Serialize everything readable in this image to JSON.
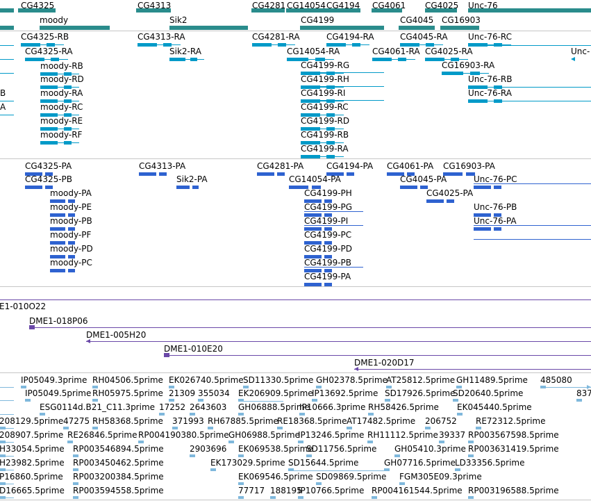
{
  "colors": {
    "gene_track": "#2a8c8c",
    "transcript_track": "#009ac8",
    "protein_track": "#2e62d0",
    "clone_track": "#6a48a8",
    "est_track": "#7fb8dc",
    "separator": "#c6c6c6",
    "text": "#000000"
  },
  "tracks": {
    "genes": {
      "features": [
        {
          "label": "CG4325"
        },
        {
          "label": "moody"
        },
        {
          "label": "CG4313"
        },
        {
          "label": "Sik2"
        },
        {
          "label": "CG4281"
        },
        {
          "label": "CG14054"
        },
        {
          "label": "CG4194"
        },
        {
          "label": "CG4199"
        },
        {
          "label": "CG4061"
        },
        {
          "label": "CG4045"
        },
        {
          "label": "CG4025"
        },
        {
          "label": "CG16903"
        },
        {
          "label": "Unc-76"
        }
      ]
    },
    "transcripts": {
      "features": [
        {
          "label": "CG4325-RB"
        },
        {
          "label": "CG4325-RA"
        },
        {
          "label": "moody-RB"
        },
        {
          "label": "moody-RD"
        },
        {
          "label": "moody-RA"
        },
        {
          "label": "moody-RC"
        },
        {
          "label": "moody-RE"
        },
        {
          "label": "moody-RF"
        },
        {
          "label": "CG4313-RA"
        },
        {
          "label": "Sik2-RA"
        },
        {
          "label": "CG4281-RA"
        },
        {
          "label": "CG4194-RA"
        },
        {
          "label": "CG14054-RA"
        },
        {
          "label": "CG4199-RG"
        },
        {
          "label": "CG4199-RH"
        },
        {
          "label": "CG4199-RI"
        },
        {
          "label": "CG4199-RC"
        },
        {
          "label": "CG4199-RD"
        },
        {
          "label": "CG4199-RB"
        },
        {
          "label": "CG4199-RA"
        },
        {
          "label": "CG4045-RA"
        },
        {
          "label": "CG4061-RA"
        },
        {
          "label": "CG4025-RA"
        },
        {
          "label": "CG16903-RA"
        },
        {
          "label": "Unc-76-RC"
        },
        {
          "label": "Unc-76-RB"
        },
        {
          "label": "Unc-76-RA"
        },
        {
          "label": "Unc-"
        },
        {
          "label": "B"
        },
        {
          "label": "A"
        }
      ]
    },
    "proteins": {
      "features": [
        {
          "label": "CG4325-PA"
        },
        {
          "label": "CG4325-PB"
        },
        {
          "label": "moody-PA"
        },
        {
          "label": "moody-PE"
        },
        {
          "label": "moody-PB"
        },
        {
          "label": "moody-PF"
        },
        {
          "label": "moody-PD"
        },
        {
          "label": "moody-PC"
        },
        {
          "label": "CG4313-PA"
        },
        {
          "label": "Sik2-PA"
        },
        {
          "label": "CG4281-PA"
        },
        {
          "label": "CG4194-PA"
        },
        {
          "label": "CG14054-PA"
        },
        {
          "label": "CG4199-PH"
        },
        {
          "label": "CG4199-PG"
        },
        {
          "label": "CG4199-PI"
        },
        {
          "label": "CG4199-PC"
        },
        {
          "label": "CG4199-PD"
        },
        {
          "label": "CG4199-PB"
        },
        {
          "label": "CG4199-PA"
        },
        {
          "label": "CG4061-PA"
        },
        {
          "label": "CG4045-PA"
        },
        {
          "label": "CG4025-PA"
        },
        {
          "label": "CG16903-PA"
        },
        {
          "label": "Unc-76-PC"
        },
        {
          "label": "Unc-76-PB"
        },
        {
          "label": "Unc-76-PA"
        }
      ]
    },
    "clones": {
      "features": [
        {
          "label": "E1-010O22"
        },
        {
          "label": "DME1-018P06"
        },
        {
          "label": "DME1-005H20"
        },
        {
          "label": "DME1-010E20"
        },
        {
          "label": "DME1-020D17"
        }
      ]
    },
    "ests": {
      "features": [
        {
          "label": "IP05049.3prime"
        },
        {
          "label": "RH04506.5prime"
        },
        {
          "label": "EK026740.5prime"
        },
        {
          "label": "SD11330.5prime"
        },
        {
          "label": "GH02378.5prime"
        },
        {
          "label": "AT25812.5prime"
        },
        {
          "label": "GH11489.5prime"
        },
        {
          "label": "485080"
        },
        {
          "label": "IP05049.5prime"
        },
        {
          "label": "RH05975.5prime"
        },
        {
          "label": "21309"
        },
        {
          "label": "355034"
        },
        {
          "label": "EK206909.5prime"
        },
        {
          "label": "IP13692.5prime"
        },
        {
          "label": "SD17926.5prime"
        },
        {
          "label": "SD20640.5prime"
        },
        {
          "label": "837"
        },
        {
          "label": "ESG0114d.B21_C11.3prime"
        },
        {
          "label": "17252"
        },
        {
          "label": "2643603"
        },
        {
          "label": "GH06888.5prime"
        },
        {
          "label": "IP10666.3prime"
        },
        {
          "label": "RH58426.5prime"
        },
        {
          "label": "EK045440.5prime"
        },
        {
          "label": "208129.5prime"
        },
        {
          "label": "47275"
        },
        {
          "label": "RH58368.5prime"
        },
        {
          "label": "371993"
        },
        {
          "label": "RH67885.5prime"
        },
        {
          "label": "RE18368.5prime"
        },
        {
          "label": "AT17482.5prime"
        },
        {
          "label": "206752"
        },
        {
          "label": "RE72312.5prime"
        },
        {
          "label": "208907.5prime"
        },
        {
          "label": "RE26846.5prime"
        },
        {
          "label": "RP004190380.5prime"
        },
        {
          "label": "GH06988.5prime"
        },
        {
          "label": "IP13246.5prime"
        },
        {
          "label": "RH11112.5prime"
        },
        {
          "label": "39337"
        },
        {
          "label": "RP003567598.5prime"
        },
        {
          "label": "H33054.5prime"
        },
        {
          "label": "RP003546894.5prime"
        },
        {
          "label": "2903696"
        },
        {
          "label": "EK069538.5prime"
        },
        {
          "label": "SD11756.5prime"
        },
        {
          "label": "GH05410.3prime"
        },
        {
          "label": "RP003631419.5prime"
        },
        {
          "label": "H23982.5prime"
        },
        {
          "label": "RP003450462.5prime"
        },
        {
          "label": "EK173029.5prime"
        },
        {
          "label": "SD15644.5prime"
        },
        {
          "label": "GH07716.5prime"
        },
        {
          "label": "LD33356.5prime"
        },
        {
          "label": "P16860.5prime"
        },
        {
          "label": "RP003200384.5prime"
        },
        {
          "label": "EK069546.5prime"
        },
        {
          "label": "SD09869.5prime"
        },
        {
          "label": "FGM305E09.3prime"
        },
        {
          "label": "D16665.5prime"
        },
        {
          "label": "RP003594558.5prime"
        },
        {
          "label": "77717"
        },
        {
          "label": "188195"
        },
        {
          "label": "IP10766.5prime"
        },
        {
          "label": "RP004161544.5prime"
        },
        {
          "label": "RP003196588.5prime"
        }
      ]
    }
  }
}
